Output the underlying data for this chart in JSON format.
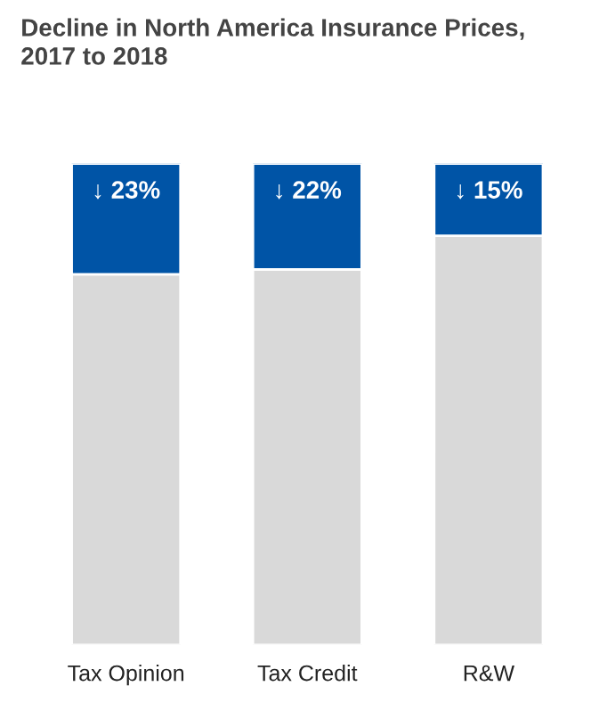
{
  "chart_data": {
    "type": "bar",
    "title": "Decline in North America Insurance Prices,\n2017 to 2018",
    "categories": [
      "Tax Opinion",
      "Tax Credit",
      "R&W"
    ],
    "stacked": true,
    "ylim": [
      0,
      100
    ],
    "tick_labels": "x",
    "series": [
      {
        "color": "#d9d9d9",
        "values": [
          77,
          78,
          85
        ]
      },
      {
        "color": "#0054a6",
        "values": [
          23,
          22,
          15
        ],
        "value_labels": [
          "↓ 23%",
          "↓ 22%",
          "↓ 15%"
        ]
      }
    ]
  }
}
